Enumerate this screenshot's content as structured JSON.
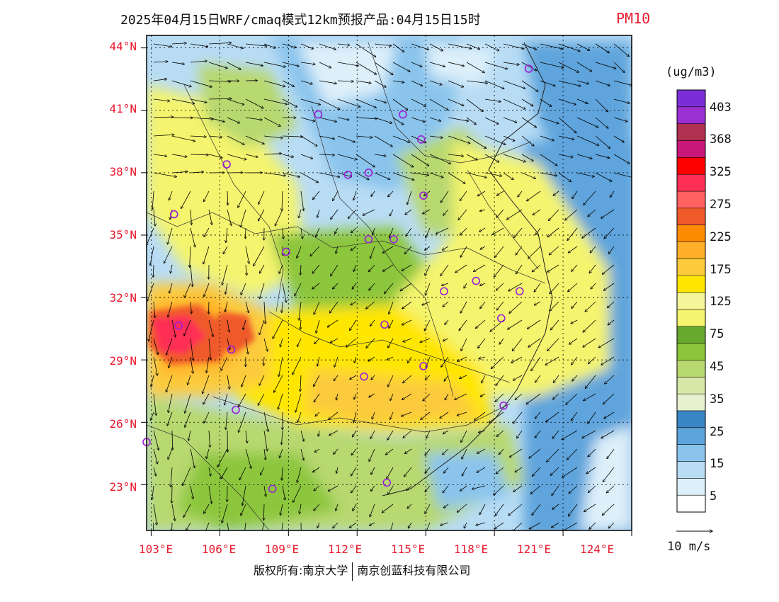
{
  "title": {
    "main": "2025年04月15日WRF/cmaq模式12km预报产品:04月15日15时",
    "variable": "PM10"
  },
  "axes": {
    "lat_labels": [
      "44°N",
      "41°N",
      "38°N",
      "35°N",
      "32°N",
      "29°N",
      "26°N",
      "23°N"
    ],
    "lon_labels": [
      "103°E",
      "106°E",
      "109°E",
      "112°E",
      "115°E",
      "118°E",
      "121°E",
      "124°E"
    ]
  },
  "legend": {
    "unit": "(ug/m3)",
    "labels": [
      "403",
      "368",
      "325",
      "275",
      "225",
      "175",
      "125",
      "75",
      "45",
      "35",
      "25",
      "15",
      "5"
    ],
    "colors": [
      "#7a2fd6",
      "#9b2fd1",
      "#b0304f",
      "#c8187a",
      "#ff0000",
      "#ff2f55",
      "#ff6060",
      "#ef5a2a",
      "#ff8c00",
      "#ffb028",
      "#fccb3c",
      "#ffe600",
      "#f5f59a",
      "#f4f46e",
      "#68a82e",
      "#8cc63c",
      "#b8d870",
      "#d6e8a8",
      "#e6f0cc",
      "#3b86c4",
      "#5ea4dc",
      "#8ac4ec",
      "#b8dcf4",
      "#ddf0fa",
      "#ffffff"
    ]
  },
  "wind_scale": {
    "label": "10 m/s"
  },
  "footer": {
    "left": "版权所有:南京大学",
    "right": "南京创蓝科技有限公司"
  },
  "map": {
    "extent": {
      "lon_min": 102.8,
      "lon_max": 124.0,
      "lat_min": 20.8,
      "lat_max": 44.6
    },
    "cities": [
      [
        102.8,
        25.05
      ],
      [
        104.2,
        30.65
      ],
      [
        104.0,
        36.0
      ],
      [
        106.5,
        29.5
      ],
      [
        106.7,
        26.6
      ],
      [
        106.3,
        38.4
      ],
      [
        108.9,
        34.2
      ],
      [
        108.3,
        22.8
      ],
      [
        110.3,
        40.8
      ],
      [
        111.6,
        37.9
      ],
      [
        112.5,
        38.0
      ],
      [
        112.3,
        28.2
      ],
      [
        113.2,
        30.7
      ],
      [
        112.5,
        34.8
      ],
      [
        113.6,
        34.8
      ],
      [
        113.3,
        23.1
      ],
      [
        114.0,
        40.8
      ],
      [
        114.8,
        39.6
      ],
      [
        114.9,
        36.9
      ],
      [
        115.8,
        32.3
      ],
      [
        117.2,
        32.8
      ],
      [
        114.9,
        28.7
      ],
      [
        118.3,
        31.0
      ],
      [
        119.1,
        32.3
      ],
      [
        118.4,
        26.8
      ],
      [
        119.5,
        43.0
      ]
    ]
  }
}
